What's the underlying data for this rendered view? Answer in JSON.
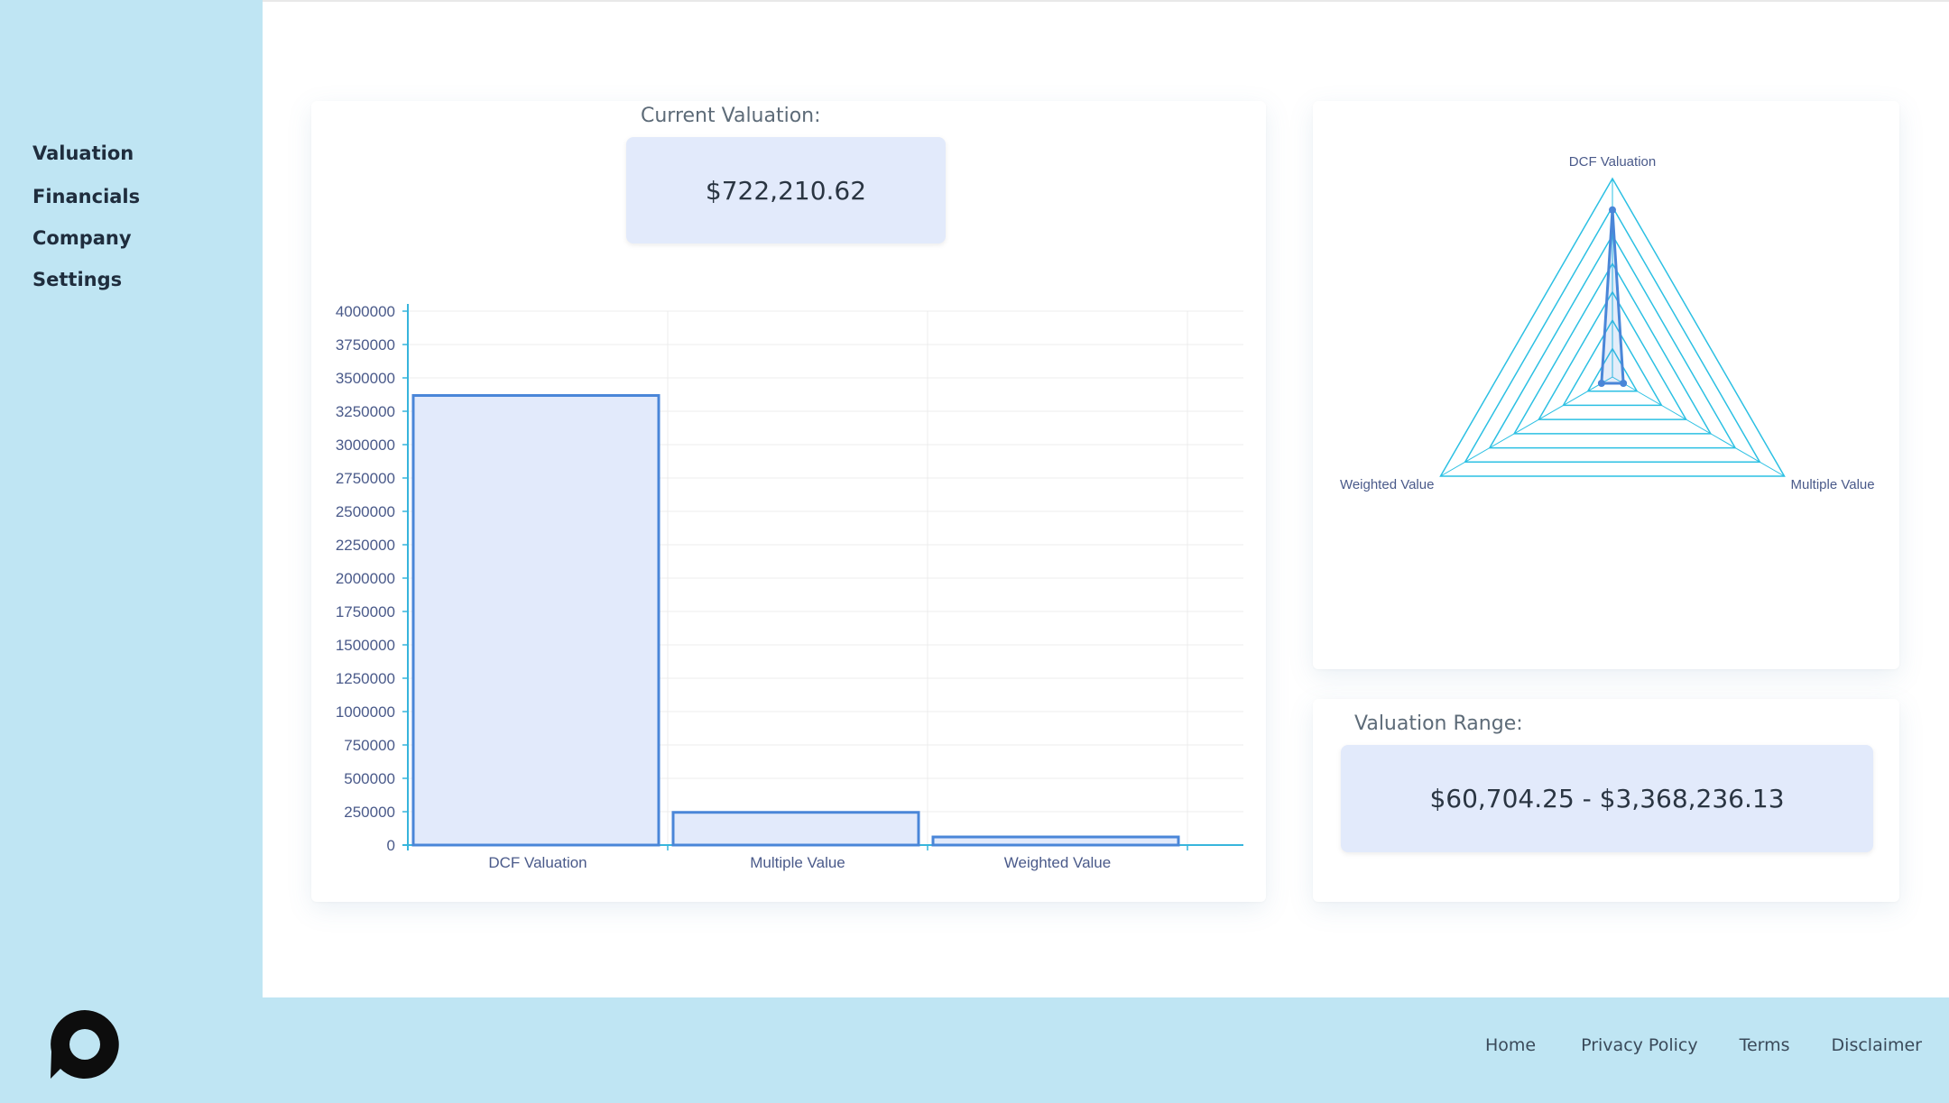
{
  "sidebar": {
    "items": [
      {
        "label": "Valuation"
      },
      {
        "label": "Financials"
      },
      {
        "label": "Company"
      },
      {
        "label": "Settings"
      }
    ]
  },
  "main": {
    "current_valuation_label": "Current Valuation:",
    "current_valuation_value": "$722,210.62",
    "range_label": "Valuation Range:",
    "range_value": "$60,704.25 - $3,368,236.13"
  },
  "footer": {
    "links": [
      {
        "label": "Home"
      },
      {
        "label": "Privacy Policy"
      },
      {
        "label": "Terms"
      },
      {
        "label": "Disclaimer"
      }
    ]
  },
  "colors": {
    "sidebar_bg": "#bfe5f3",
    "accent_line": "#3a9bd9",
    "bar_fill": "#e2eafb",
    "bar_stroke": "#4a86d8",
    "axis": "#37b5dc",
    "radar_grid": "#2cc0e3"
  },
  "chart_data": [
    {
      "type": "bar",
      "categories": [
        "DCF Valuation",
        "Multiple Value",
        "Weighted Value"
      ],
      "values": [
        3368236.13,
        245000,
        60704.25
      ],
      "ylim": [
        0,
        4000000
      ],
      "yticks": [
        0,
        250000,
        500000,
        750000,
        1000000,
        1250000,
        1500000,
        1750000,
        2000000,
        2250000,
        2500000,
        2750000,
        3000000,
        3250000,
        3500000,
        3750000,
        4000000
      ],
      "grid": true
    },
    {
      "type": "radar",
      "axes": [
        "DCF Valuation",
        "Multiple Value",
        "Weighted Value"
      ],
      "values": [
        3368236.13,
        245000,
        60704.25
      ],
      "rmax": 4000000,
      "rings": 7
    }
  ]
}
